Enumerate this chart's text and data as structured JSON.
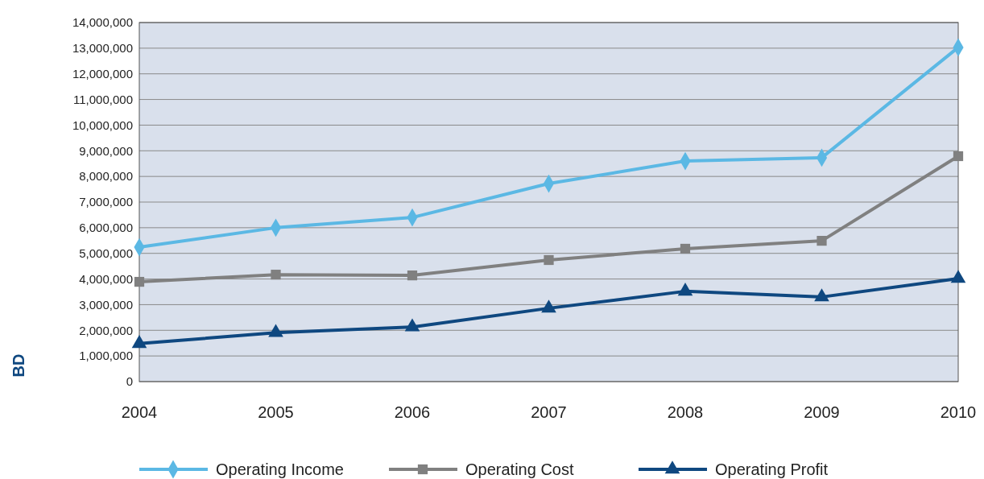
{
  "chart_data": {
    "type": "line",
    "ylabel": "BD",
    "x": [
      2004,
      2005,
      2006,
      2007,
      2008,
      2009,
      2010
    ],
    "xlim": [
      2004,
      2010
    ],
    "xticks": [
      2004,
      2005,
      2006,
      2007,
      2008,
      2009,
      2010
    ],
    "ylim": [
      0,
      14000000
    ],
    "yticks": [
      {
        "value": 0,
        "label": "0"
      },
      {
        "value": 1000000,
        "label": "1,000,000"
      },
      {
        "value": 2000000,
        "label": "2,000,000"
      },
      {
        "value": 3000000,
        "label": "3,000,000"
      },
      {
        "value": 4000000,
        "label": "4,000,000"
      },
      {
        "value": 5000000,
        "label": "5,000,000"
      },
      {
        "value": 6000000,
        "label": "6,000,000"
      },
      {
        "value": 7000000,
        "label": "7,000,000"
      },
      {
        "value": 8000000,
        "label": "8,000,000"
      },
      {
        "value": 9000000,
        "label": "9,000,000"
      },
      {
        "value": 10000000,
        "label": "10,000,000"
      },
      {
        "value": 11000000,
        "label": "11,000,000"
      },
      {
        "value": 12000000,
        "label": "12,000,000"
      },
      {
        "value": 13000000,
        "label": "13,000,000"
      },
      {
        "value": 14000000,
        "label": "14,000,000"
      }
    ],
    "grid": "y",
    "legend": "bottom",
    "line_style": "solid",
    "series": [
      {
        "name": "Operating Income",
        "color": "#5bb8e4",
        "marker": "diamond",
        "values": [
          5240000,
          6000000,
          6400000,
          7720000,
          8600000,
          8730000,
          13030000
        ]
      },
      {
        "name": "Operating Cost",
        "color": "#808080",
        "marker": "square",
        "values": [
          3890000,
          4170000,
          4140000,
          4740000,
          5180000,
          5490000,
          8790000
        ]
      },
      {
        "name": "Operating Profit",
        "color": "#0f4880",
        "marker": "triangle",
        "values": [
          1480000,
          1910000,
          2130000,
          2860000,
          3520000,
          3300000,
          4020000
        ]
      }
    ]
  }
}
